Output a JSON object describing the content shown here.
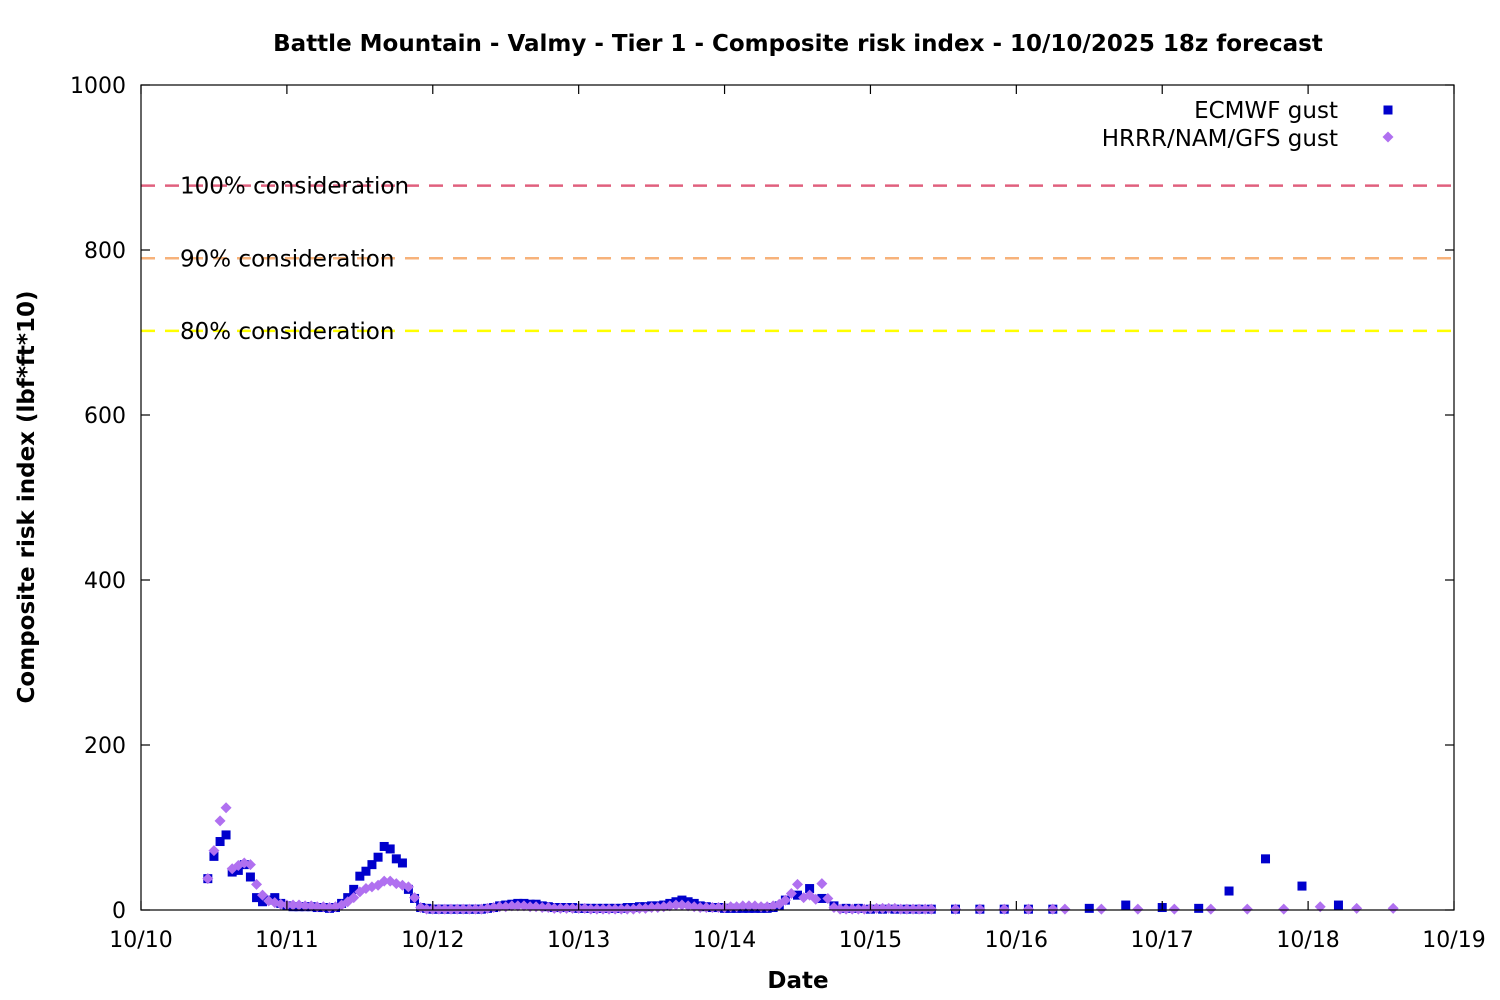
{
  "chart_data": {
    "type": "scatter",
    "title": "Battle Mountain - Valmy - Tier 1 - Composite risk index - 10/10/2025 18z forecast",
    "xlabel": "Date",
    "ylabel": "Composite risk index (lbf*ft*10)",
    "xlim": [
      "10/10",
      "10/19"
    ],
    "ylim": [
      0,
      1000
    ],
    "x_ticks": [
      "10/10",
      "10/11",
      "10/12",
      "10/13",
      "10/14",
      "10/15",
      "10/16",
      "10/17",
      "10/18",
      "10/19"
    ],
    "y_ticks": [
      0,
      200,
      400,
      600,
      800,
      1000
    ],
    "grid": false,
    "legend_position": "top-right",
    "reference_lines": [
      {
        "label": "100% consideration",
        "value": 878,
        "color": "#e0607e"
      },
      {
        "label": "90% consideration",
        "value": 790,
        "color": "#f7b27a"
      },
      {
        "label": "80% consideration",
        "value": 702,
        "color": "#ffff00"
      }
    ],
    "series": [
      {
        "name": "ECMWF gust",
        "marker": "square",
        "color": "#0000cc",
        "points": [
          [
            0.458,
            38
          ],
          [
            0.5,
            65
          ],
          [
            0.542,
            83
          ],
          [
            0.583,
            91
          ],
          [
            0.625,
            46
          ],
          [
            0.667,
            48
          ],
          [
            0.708,
            55
          ],
          [
            0.75,
            40
          ],
          [
            0.792,
            15
          ],
          [
            0.833,
            10
          ],
          [
            0.875,
            12
          ],
          [
            0.917,
            15
          ],
          [
            0.958,
            8
          ],
          [
            1.0,
            5
          ],
          [
            1.042,
            4
          ],
          [
            1.083,
            4
          ],
          [
            1.125,
            4
          ],
          [
            1.167,
            4
          ],
          [
            1.208,
            3
          ],
          [
            1.25,
            3
          ],
          [
            1.292,
            2
          ],
          [
            1.333,
            3
          ],
          [
            1.375,
            8
          ],
          [
            1.417,
            15
          ],
          [
            1.458,
            25
          ],
          [
            1.5,
            41
          ],
          [
            1.542,
            47
          ],
          [
            1.583,
            55
          ],
          [
            1.625,
            64
          ],
          [
            1.667,
            77
          ],
          [
            1.708,
            74
          ],
          [
            1.75,
            62
          ],
          [
            1.792,
            57
          ],
          [
            1.833,
            25
          ],
          [
            1.875,
            14
          ],
          [
            1.917,
            3
          ],
          [
            1.958,
            2
          ],
          [
            2.0,
            1
          ],
          [
            2.042,
            1
          ],
          [
            2.083,
            1
          ],
          [
            2.125,
            1
          ],
          [
            2.167,
            1
          ],
          [
            2.208,
            1
          ],
          [
            2.25,
            1
          ],
          [
            2.292,
            1
          ],
          [
            2.333,
            1
          ],
          [
            2.375,
            2
          ],
          [
            2.417,
            3
          ],
          [
            2.458,
            5
          ],
          [
            2.5,
            6
          ],
          [
            2.542,
            7
          ],
          [
            2.583,
            8
          ],
          [
            2.625,
            8
          ],
          [
            2.667,
            7
          ],
          [
            2.708,
            7
          ],
          [
            2.75,
            5
          ],
          [
            2.792,
            4
          ],
          [
            2.833,
            3
          ],
          [
            2.875,
            3
          ],
          [
            2.917,
            3
          ],
          [
            2.958,
            3
          ],
          [
            3.0,
            2
          ],
          [
            3.042,
            2
          ],
          [
            3.083,
            2
          ],
          [
            3.125,
            2
          ],
          [
            3.167,
            2
          ],
          [
            3.208,
            2
          ],
          [
            3.25,
            2
          ],
          [
            3.292,
            2
          ],
          [
            3.333,
            3
          ],
          [
            3.375,
            3
          ],
          [
            3.417,
            4
          ],
          [
            3.458,
            4
          ],
          [
            3.5,
            5
          ],
          [
            3.542,
            5
          ],
          [
            3.583,
            6
          ],
          [
            3.625,
            8
          ],
          [
            3.667,
            10
          ],
          [
            3.708,
            12
          ],
          [
            3.75,
            10
          ],
          [
            3.792,
            8
          ],
          [
            3.833,
            5
          ],
          [
            3.875,
            4
          ],
          [
            3.917,
            3
          ],
          [
            3.958,
            3
          ],
          [
            4.0,
            2
          ],
          [
            4.042,
            2
          ],
          [
            4.083,
            2
          ],
          [
            4.125,
            2
          ],
          [
            4.167,
            2
          ],
          [
            4.208,
            2
          ],
          [
            4.25,
            2
          ],
          [
            4.292,
            2
          ],
          [
            4.333,
            3
          ],
          [
            4.375,
            5
          ],
          [
            4.417,
            12
          ],
          [
            4.5,
            18
          ],
          [
            4.583,
            26
          ],
          [
            4.667,
            14
          ],
          [
            4.75,
            5
          ],
          [
            4.833,
            2
          ],
          [
            4.917,
            2
          ],
          [
            5.0,
            1
          ],
          [
            5.083,
            1
          ],
          [
            5.167,
            1
          ],
          [
            5.25,
            1
          ],
          [
            5.333,
            1
          ],
          [
            5.417,
            1
          ],
          [
            5.583,
            1
          ],
          [
            5.75,
            1
          ],
          [
            5.917,
            1
          ],
          [
            6.083,
            1
          ],
          [
            6.25,
            1
          ],
          [
            6.5,
            2
          ],
          [
            6.75,
            6
          ],
          [
            7.0,
            3
          ],
          [
            7.25,
            2
          ],
          [
            7.458,
            23
          ],
          [
            7.708,
            62
          ],
          [
            7.958,
            29
          ],
          [
            8.208,
            6
          ]
        ]
      },
      {
        "name": "HRRR/NAM/GFS gust",
        "marker": "diamond",
        "color": "#b070f0",
        "points": [
          [
            0.458,
            38
          ],
          [
            0.5,
            72
          ],
          [
            0.542,
            108
          ],
          [
            0.583,
            124
          ],
          [
            0.625,
            50
          ],
          [
            0.667,
            54
          ],
          [
            0.708,
            57
          ],
          [
            0.75,
            55
          ],
          [
            0.792,
            31
          ],
          [
            0.833,
            18
          ],
          [
            0.875,
            11
          ],
          [
            0.917,
            9
          ],
          [
            0.958,
            7
          ],
          [
            1.0,
            6
          ],
          [
            1.042,
            6
          ],
          [
            1.083,
            6
          ],
          [
            1.125,
            5
          ],
          [
            1.167,
            5
          ],
          [
            1.208,
            4
          ],
          [
            1.25,
            4
          ],
          [
            1.292,
            3
          ],
          [
            1.333,
            4
          ],
          [
            1.375,
            6
          ],
          [
            1.417,
            10
          ],
          [
            1.458,
            15
          ],
          [
            1.5,
            22
          ],
          [
            1.542,
            26
          ],
          [
            1.583,
            28
          ],
          [
            1.625,
            30
          ],
          [
            1.667,
            35
          ],
          [
            1.708,
            35
          ],
          [
            1.75,
            32
          ],
          [
            1.792,
            30
          ],
          [
            1.833,
            28
          ],
          [
            1.875,
            15
          ],
          [
            1.917,
            3
          ],
          [
            1.958,
            1
          ],
          [
            2.0,
            1
          ],
          [
            2.042,
            1
          ],
          [
            2.083,
            1
          ],
          [
            2.125,
            1
          ],
          [
            2.167,
            1
          ],
          [
            2.208,
            1
          ],
          [
            2.25,
            1
          ],
          [
            2.292,
            1
          ],
          [
            2.333,
            1
          ],
          [
            2.375,
            2
          ],
          [
            2.417,
            3
          ],
          [
            2.458,
            4
          ],
          [
            2.5,
            4
          ],
          [
            2.542,
            5
          ],
          [
            2.583,
            5
          ],
          [
            2.625,
            5
          ],
          [
            2.667,
            4
          ],
          [
            2.708,
            4
          ],
          [
            2.75,
            3
          ],
          [
            2.792,
            3
          ],
          [
            2.833,
            2
          ],
          [
            2.875,
            2
          ],
          [
            2.917,
            2
          ],
          [
            2.958,
            2
          ],
          [
            3.0,
            2
          ],
          [
            3.042,
            2
          ],
          [
            3.083,
            1
          ],
          [
            3.125,
            1
          ],
          [
            3.167,
            1
          ],
          [
            3.208,
            1
          ],
          [
            3.25,
            1
          ],
          [
            3.292,
            1
          ],
          [
            3.333,
            1
          ],
          [
            3.375,
            1
          ],
          [
            3.417,
            2
          ],
          [
            3.458,
            2
          ],
          [
            3.5,
            3
          ],
          [
            3.542,
            3
          ],
          [
            3.583,
            4
          ],
          [
            3.625,
            5
          ],
          [
            3.667,
            6
          ],
          [
            3.708,
            6
          ],
          [
            3.75,
            5
          ],
          [
            3.792,
            4
          ],
          [
            3.833,
            3
          ],
          [
            3.875,
            3
          ],
          [
            3.917,
            3
          ],
          [
            3.958,
            3
          ],
          [
            4.0,
            3
          ],
          [
            4.042,
            4
          ],
          [
            4.083,
            4
          ],
          [
            4.125,
            5
          ],
          [
            4.167,
            5
          ],
          [
            4.208,
            5
          ],
          [
            4.25,
            4
          ],
          [
            4.292,
            4
          ],
          [
            4.333,
            5
          ],
          [
            4.375,
            7
          ],
          [
            4.417,
            12
          ],
          [
            4.458,
            20
          ],
          [
            4.5,
            31
          ],
          [
            4.542,
            15
          ],
          [
            4.583,
            18
          ],
          [
            4.625,
            13
          ],
          [
            4.667,
            32
          ],
          [
            4.708,
            14
          ],
          [
            4.75,
            3
          ],
          [
            4.792,
            1
          ],
          [
            4.833,
            1
          ],
          [
            4.875,
            1
          ],
          [
            4.917,
            1
          ],
          [
            4.958,
            1
          ],
          [
            5.0,
            2
          ],
          [
            5.042,
            2
          ],
          [
            5.083,
            2
          ],
          [
            5.125,
            2
          ],
          [
            5.167,
            2
          ],
          [
            5.208,
            1
          ],
          [
            5.25,
            1
          ],
          [
            5.292,
            1
          ],
          [
            5.333,
            1
          ],
          [
            5.375,
            1
          ],
          [
            5.417,
            1
          ],
          [
            5.583,
            1
          ],
          [
            5.75,
            1
          ],
          [
            5.917,
            1
          ],
          [
            6.083,
            1
          ],
          [
            6.25,
            1
          ],
          [
            6.333,
            1
          ],
          [
            6.583,
            1
          ],
          [
            6.833,
            1
          ],
          [
            7.083,
            1
          ],
          [
            7.333,
            1
          ],
          [
            7.583,
            1
          ],
          [
            7.833,
            1
          ],
          [
            8.083,
            4
          ],
          [
            8.333,
            2
          ],
          [
            8.583,
            2
          ]
        ]
      }
    ]
  }
}
